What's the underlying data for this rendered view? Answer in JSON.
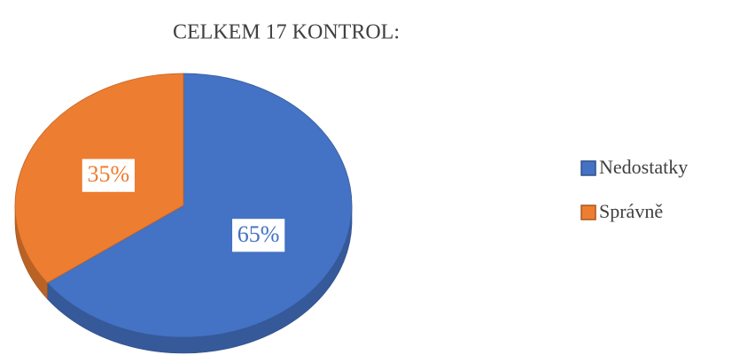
{
  "chart_data": {
    "type": "pie",
    "title": "CELKEM 17 KONTROL:",
    "categories": [
      "Nedostatky",
      "Správně"
    ],
    "values": [
      65,
      35
    ],
    "value_labels": [
      "65%",
      "35%"
    ],
    "colors": [
      "#4472c4",
      "#ed7d31"
    ],
    "legend": "right"
  }
}
